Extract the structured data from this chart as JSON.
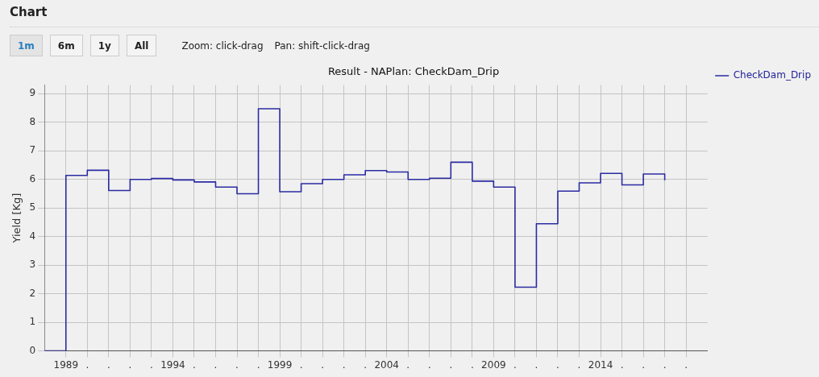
{
  "chart_data": {
    "type": "step",
    "title": "Result - NAPlan: CheckDam_Drip",
    "ylabel": "Yield [Kg]",
    "annotations": [
      "Chart",
      "1m",
      "6m",
      "1y",
      "All",
      "Zoom: click-drag",
      "Pan: shift-click-drag"
    ],
    "x": [
      1988,
      1989,
      1990,
      1991,
      1992,
      1993,
      1994,
      1995,
      1996,
      1997,
      1998,
      1999,
      2000,
      2001,
      2002,
      2003,
      2004,
      2005,
      2006,
      2007,
      2008,
      2009,
      2010,
      2011,
      2012,
      2013,
      2014,
      2015,
      2016,
      2017
    ],
    "series": [
      {
        "name": "CheckDam_Drip",
        "color": "#2b2ba3",
        "values": [
          0,
          6.14,
          6.32,
          5.61,
          6.0,
          6.03,
          5.98,
          5.91,
          5.73,
          5.5,
          8.47,
          5.57,
          5.85,
          6.0,
          6.16,
          6.31,
          6.26,
          6.0,
          6.04,
          6.6,
          5.94,
          5.73,
          2.23,
          4.45,
          5.59,
          5.88,
          6.21,
          5.81,
          6.19,
          5.97
        ]
      }
    ],
    "xlim": [
      1988,
      2019
    ],
    "xticks": [
      1989,
      {
        "value": 1990,
        "label": "."
      },
      {
        "value": 1991,
        "label": "."
      },
      {
        "value": 1992,
        "label": "."
      },
      {
        "value": 1993,
        "label": "."
      },
      1994,
      {
        "value": 1995,
        "label": "."
      },
      {
        "value": 1996,
        "label": "."
      },
      {
        "value": 1997,
        "label": "."
      },
      {
        "value": 1998,
        "label": "."
      },
      1999,
      {
        "value": 2000,
        "label": "."
      },
      {
        "value": 2001,
        "label": "."
      },
      {
        "value": 2002,
        "label": "."
      },
      {
        "value": 2003,
        "label": "."
      },
      2004,
      {
        "value": 2005,
        "label": "."
      },
      {
        "value": 2006,
        "label": "."
      },
      {
        "value": 2007,
        "label": "."
      },
      {
        "value": 2008,
        "label": "."
      },
      2009,
      {
        "value": 2010,
        "label": "."
      },
      {
        "value": 2011,
        "label": "."
      },
      {
        "value": 2012,
        "label": "."
      },
      {
        "value": 2013,
        "label": "."
      },
      2014,
      {
        "value": 2015,
        "label": "."
      },
      {
        "value": 2016,
        "label": "."
      },
      {
        "value": 2017,
        "label": "."
      },
      {
        "value": 2018,
        "label": "."
      }
    ],
    "ylim": [
      0,
      9.3
    ],
    "yticks": [
      0,
      1,
      2,
      3,
      4,
      5,
      6,
      7,
      8,
      9
    ],
    "grid": true,
    "legend": "top right",
    "marker": "none",
    "line_style": "solid"
  }
}
